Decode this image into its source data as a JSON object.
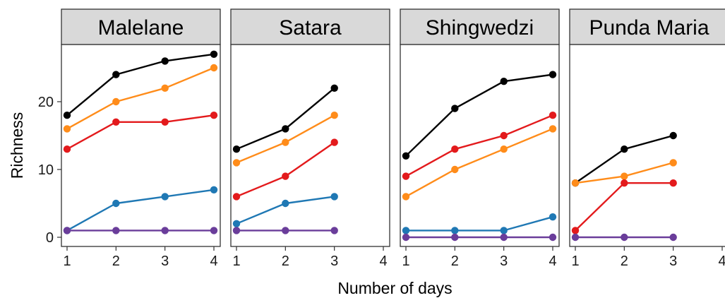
{
  "chart_data": {
    "type": "line",
    "xlabel": "Number of days",
    "ylabel": "Richness",
    "x_ticks": [
      1,
      2,
      3,
      4
    ],
    "y_ticks": [
      0,
      10,
      20
    ],
    "xlim": [
      1,
      4
    ],
    "ylim": [
      0,
      28
    ],
    "grid": false,
    "legend": "none",
    "series_colors": [
      "#000000",
      "#FF8C1A",
      "#E31A1C",
      "#1F78B4",
      "#6A3D9A"
    ],
    "panels": [
      {
        "title": "Malelane",
        "series": [
          {
            "color": "#000000",
            "x": [
              1,
              2,
              3,
              4
            ],
            "values": [
              18,
              24,
              26,
              27
            ]
          },
          {
            "color": "#FF8C1A",
            "x": [
              1,
              2,
              3,
              4
            ],
            "values": [
              16,
              20,
              22,
              25
            ]
          },
          {
            "color": "#E31A1C",
            "x": [
              1,
              2,
              3,
              4
            ],
            "values": [
              13,
              17,
              17,
              18
            ]
          },
          {
            "color": "#1F78B4",
            "x": [
              1,
              2,
              3,
              4
            ],
            "values": [
              1,
              5,
              6,
              7
            ]
          },
          {
            "color": "#6A3D9A",
            "x": [
              1,
              2,
              3,
              4
            ],
            "values": [
              1,
              1,
              1,
              1
            ]
          }
        ]
      },
      {
        "title": "Satara",
        "series": [
          {
            "color": "#000000",
            "x": [
              1,
              2,
              3
            ],
            "values": [
              13,
              16,
              22
            ]
          },
          {
            "color": "#FF8C1A",
            "x": [
              1,
              2,
              3
            ],
            "values": [
              11,
              14,
              18
            ]
          },
          {
            "color": "#E31A1C",
            "x": [
              1,
              2,
              3
            ],
            "values": [
              6,
              9,
              14
            ]
          },
          {
            "color": "#1F78B4",
            "x": [
              1,
              2,
              3
            ],
            "values": [
              2,
              5,
              6
            ]
          },
          {
            "color": "#6A3D9A",
            "x": [
              1,
              2,
              3
            ],
            "values": [
              1,
              1,
              1
            ]
          }
        ]
      },
      {
        "title": "Shingwedzi",
        "series": [
          {
            "color": "#000000",
            "x": [
              1,
              2,
              3,
              4
            ],
            "values": [
              12,
              19,
              23,
              24
            ]
          },
          {
            "color": "#FF8C1A",
            "x": [
              1,
              2,
              3,
              4
            ],
            "values": [
              6,
              10,
              13,
              16
            ]
          },
          {
            "color": "#E31A1C",
            "x": [
              1,
              2,
              3,
              4
            ],
            "values": [
              9,
              13,
              15,
              18
            ]
          },
          {
            "color": "#1F78B4",
            "x": [
              1,
              2,
              3,
              4
            ],
            "values": [
              1,
              1,
              1,
              3
            ]
          },
          {
            "color": "#6A3D9A",
            "x": [
              1,
              2,
              3,
              4
            ],
            "values": [
              0,
              0,
              0,
              0
            ]
          }
        ]
      },
      {
        "title": "Punda Maria",
        "series": [
          {
            "color": "#000000",
            "x": [
              1,
              2,
              3
            ],
            "values": [
              8,
              13,
              15
            ]
          },
          {
            "color": "#FF8C1A",
            "x": [
              1,
              2,
              3
            ],
            "values": [
              8,
              9,
              11
            ]
          },
          {
            "color": "#E31A1C",
            "x": [
              1,
              2,
              3
            ],
            "values": [
              1,
              8,
              8
            ]
          },
          {
            "color": "#6A3D9A",
            "x": [
              1,
              2,
              3
            ],
            "values": [
              0,
              0,
              0
            ]
          }
        ]
      }
    ]
  }
}
